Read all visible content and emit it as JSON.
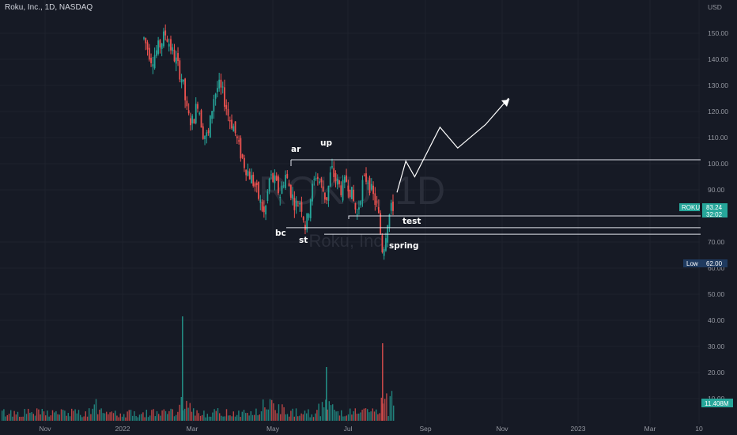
{
  "header": {
    "title": "Roku, Inc., 1D, NASDAQ"
  },
  "watermark": {
    "symbol": "ROKU, 1D",
    "name": "Roku, Inc."
  },
  "colors": {
    "background": "#161a25",
    "up": "#26a69a",
    "down": "#ef5350",
    "grid": "#1f2430",
    "line": "#e0e3eb",
    "badge_up": "#26a69a",
    "badge_low": "#1f3a5f"
  },
  "badges": {
    "roku_label": "ROKU",
    "price": "83.24",
    "countdown": "32:02",
    "low_label": "Low",
    "low_value": "62.00",
    "volume_value": "11.408M"
  },
  "annotations": {
    "ar": "ar",
    "up": "up",
    "bc": "bc",
    "st": "st",
    "test": "test",
    "spring": "spring"
  },
  "chart_data": {
    "type": "candlestick",
    "price_axis": {
      "currency": "USD",
      "ticks": [
        150,
        140,
        130,
        120,
        110,
        100,
        90,
        70,
        60,
        50,
        40,
        30,
        20,
        10
      ],
      "labels": [
        "150.00",
        "140.00",
        "130.00",
        "120.00",
        "110.00",
        "100.00",
        "90.00",
        "70.00",
        "60.00",
        "50.00",
        "40.00",
        "30.00",
        "20.00",
        "10.00"
      ],
      "ylim": [
        1,
        161
      ]
    },
    "time_axis": {
      "labels": [
        "Nov",
        "2022",
        "Mar",
        "May",
        "Jul",
        "Sep",
        "Nov",
        "2023",
        "Mar",
        "10"
      ]
    },
    "levels": {
      "resistance": 101.5,
      "test_line": 80,
      "bc_line": 75.5,
      "st_line": 73
    },
    "projection": [
      [
        0,
        89
      ],
      [
        7,
        101
      ],
      [
        14,
        95
      ],
      [
        34,
        114
      ],
      [
        48,
        106
      ],
      [
        70,
        115
      ],
      [
        88,
        125
      ]
    ],
    "price_path": [
      [
        0,
        148
      ],
      [
        6,
        140
      ],
      [
        12,
        145
      ],
      [
        17,
        150
      ],
      [
        22,
        143
      ],
      [
        26,
        138
      ],
      [
        30,
        132
      ],
      [
        34,
        118
      ],
      [
        38,
        116
      ],
      [
        42,
        124
      ],
      [
        46,
        112
      ],
      [
        50,
        110
      ],
      [
        54,
        125
      ],
      [
        58,
        130
      ],
      [
        62,
        126
      ],
      [
        66,
        118
      ],
      [
        70,
        114
      ],
      [
        74,
        106
      ],
      [
        78,
        100
      ],
      [
        82,
        96
      ],
      [
        86,
        92
      ],
      [
        90,
        86
      ],
      [
        94,
        80
      ],
      [
        98,
        95
      ],
      [
        102,
        93
      ],
      [
        106,
        88
      ],
      [
        110,
        96
      ],
      [
        114,
        90
      ],
      [
        118,
        84
      ],
      [
        122,
        86
      ],
      [
        126,
        75
      ],
      [
        130,
        88
      ],
      [
        134,
        96
      ],
      [
        138,
        92
      ],
      [
        142,
        86
      ],
      [
        146,
        98
      ],
      [
        150,
        93
      ],
      [
        154,
        90
      ],
      [
        158,
        94
      ],
      [
        162,
        88
      ],
      [
        166,
        80
      ],
      [
        170,
        92
      ],
      [
        174,
        95
      ],
      [
        178,
        88
      ],
      [
        182,
        83
      ],
      [
        186,
        66
      ],
      [
        190,
        79
      ],
      [
        194,
        84
      ]
    ],
    "volume": {
      "max_label": "40.00",
      "spikes": [
        [
          17,
          41
        ],
        [
          108,
          30
        ],
        [
          184,
          29
        ]
      ]
    }
  }
}
